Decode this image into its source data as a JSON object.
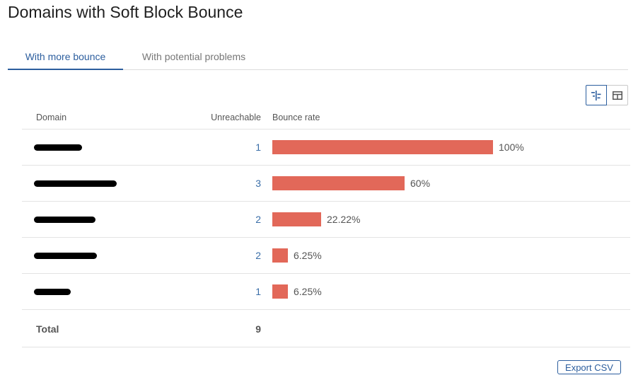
{
  "page": {
    "title": "Domains with Soft Block Bounce"
  },
  "tabs": [
    {
      "label": "With more bounce",
      "active": true
    },
    {
      "label": "With potential problems",
      "active": false
    }
  ],
  "view_toggle": {
    "active": "bar-view"
  },
  "table": {
    "headers": {
      "domain": "Domain",
      "unreachable": "Unreachable",
      "bounce_rate": "Bounce rate"
    },
    "rows": [
      {
        "domain": "",
        "unreachable": "1",
        "bounce_rate_label": "100%",
        "bounce_rate": 100
      },
      {
        "domain": "",
        "unreachable": "3",
        "bounce_rate_label": "60%",
        "bounce_rate": 60
      },
      {
        "domain": "",
        "unreachable": "2",
        "bounce_rate_label": "22.22%",
        "bounce_rate": 22.22
      },
      {
        "domain": "",
        "unreachable": "2",
        "bounce_rate_label": "6.25%",
        "bounce_rate": 6.25
      },
      {
        "domain": "",
        "unreachable": "1",
        "bounce_rate_label": "6.25%",
        "bounce_rate": 6.25
      }
    ],
    "total": {
      "label": "Total",
      "value": "9"
    }
  },
  "actions": {
    "export_label": "Export CSV"
  },
  "colors": {
    "bar": "#e26859",
    "accent": "#2c5e9e"
  }
}
